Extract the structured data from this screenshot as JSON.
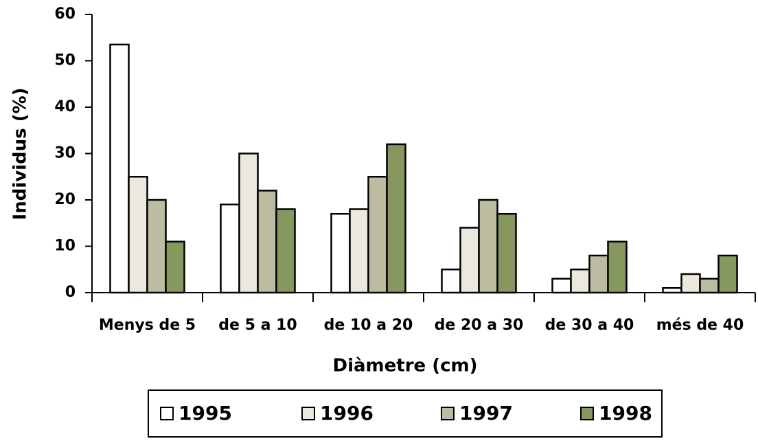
{
  "chart_data": {
    "type": "bar",
    "x_label": "Diàmetre (cm)",
    "y_label": "Individus (%)",
    "categories": [
      "Menys de 5",
      "de 5 a 10",
      "de 10 a 20",
      "de 20 a 30",
      "de 30 a 40",
      "més de 40"
    ],
    "series": [
      {
        "name": "1995",
        "color": "#ffffff",
        "values": [
          53.5,
          19,
          17,
          5,
          3,
          1
        ]
      },
      {
        "name": "1996",
        "color": "#ebe9df",
        "values": [
          25,
          30,
          18,
          14,
          5,
          4
        ]
      },
      {
        "name": "1997",
        "color": "#bcbda0",
        "values": [
          20,
          22,
          25,
          20,
          8,
          3
        ]
      },
      {
        "name": "1998",
        "color": "#86975f",
        "values": [
          11,
          18,
          32,
          17,
          11,
          8
        ]
      }
    ],
    "ylim": [
      0,
      60
    ],
    "yticks": [
      0,
      10,
      20,
      30,
      40,
      50,
      60
    ]
  }
}
